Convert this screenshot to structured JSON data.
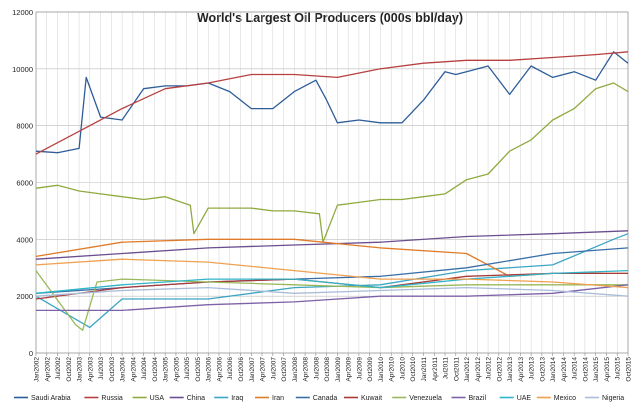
{
  "chart_data": {
    "type": "line",
    "title": "World's Largest Oil Producers (000s bbl/day)",
    "xlabel": "",
    "ylabel": "",
    "ylim": [
      0,
      12000
    ],
    "yticks": [
      0,
      2000,
      4000,
      6000,
      8000,
      10000,
      12000
    ],
    "grid": true,
    "legend_position": "bottom",
    "x_start": "Jan2002",
    "x_end": "Oct2015",
    "x_tick_labels": [
      "Jan2002",
      "Apr2002",
      "Jul2002",
      "Oct2002",
      "Jan2003",
      "Apr2003",
      "Jul2003",
      "Oct2003",
      "Jan2004",
      "Apr2004",
      "Jul2004",
      "Oct2004",
      "Jan2005",
      "Apr2005",
      "Jul2005",
      "Oct2005",
      "Jan2006",
      "Apr2006",
      "Jul2006",
      "Oct2006",
      "Jan2007",
      "Apr2007",
      "Jul2007",
      "Oct2007",
      "Jan2008",
      "Apr2008",
      "Jul2008",
      "Oct2008",
      "Jan2009",
      "Apr2009",
      "Jul2009",
      "Oct2009",
      "Jan2010",
      "Apr2010",
      "Jul2010",
      "Oct2010",
      "Jan2011",
      "Apr2011",
      "Jul2011",
      "Oct2011",
      "Jan2012",
      "Apr2012",
      "Jul2012",
      "Oct2012",
      "Jan2013",
      "Apr2013",
      "Jul2013",
      "Oct2013",
      "Jan2014",
      "Apr2014",
      "Jul2014",
      "Oct2014",
      "Jan2015",
      "Apr2015",
      "Jul2015",
      "Oct2015"
    ],
    "series": [
      {
        "name": "Saudi Arabia",
        "color": "#2e5d9a",
        "points": [
          [
            "Jan2002",
            7100
          ],
          [
            "Jul2002",
            7050
          ],
          [
            "Jan2003",
            7200
          ],
          [
            "Mar2003",
            9700
          ],
          [
            "Jul2003",
            8300
          ],
          [
            "Jan2004",
            8200
          ],
          [
            "Jul2004",
            9300
          ],
          [
            "Jan2005",
            9400
          ],
          [
            "Jul2005",
            9400
          ],
          [
            "Jan2006",
            9500
          ],
          [
            "Jul2006",
            9200
          ],
          [
            "Jan2007",
            8600
          ],
          [
            "Jul2007",
            8600
          ],
          [
            "Jan2008",
            9200
          ],
          [
            "Jul2008",
            9600
          ],
          [
            "Oct2008",
            8900
          ],
          [
            "Jan2009",
            8100
          ],
          [
            "Jul2009",
            8200
          ],
          [
            "Jan2010",
            8100
          ],
          [
            "Jul2010",
            8100
          ],
          [
            "Jan2011",
            8900
          ],
          [
            "Jul2011",
            9900
          ],
          [
            "Oct2011",
            9800
          ],
          [
            "Jan2012",
            9900
          ],
          [
            "Jul2012",
            10100
          ],
          [
            "Jan2013",
            9100
          ],
          [
            "Jul2013",
            10100
          ],
          [
            "Jan2014",
            9700
          ],
          [
            "Jul2014",
            9900
          ],
          [
            "Jan2015",
            9600
          ],
          [
            "Jun2015",
            10600
          ],
          [
            "Oct2015",
            10200
          ]
        ]
      },
      {
        "name": "Russia",
        "color": "#b84040",
        "points": [
          [
            "Jan2002",
            7000
          ],
          [
            "Jan2003",
            7800
          ],
          [
            "Jan2004",
            8600
          ],
          [
            "Jan2005",
            9300
          ],
          [
            "Jan2006",
            9500
          ],
          [
            "Jan2007",
            9800
          ],
          [
            "Jan2008",
            9800
          ],
          [
            "Jan2009",
            9700
          ],
          [
            "Jan2010",
            10000
          ],
          [
            "Jan2011",
            10200
          ],
          [
            "Jan2012",
            10300
          ],
          [
            "Jan2013",
            10300
          ],
          [
            "Jan2014",
            10400
          ],
          [
            "Jan2015",
            10500
          ],
          [
            "Oct2015",
            10600
          ]
        ]
      },
      {
        "name": "USA",
        "color": "#8faa3f",
        "points": [
          [
            "Jan2002",
            5800
          ],
          [
            "Jul2002",
            5900
          ],
          [
            "Jan2003",
            5700
          ],
          [
            "Jul2003",
            5600
          ],
          [
            "Jan2004",
            5500
          ],
          [
            "Jul2004",
            5400
          ],
          [
            "Jan2005",
            5500
          ],
          [
            "Aug2005",
            5200
          ],
          [
            "Sep2005",
            4200
          ],
          [
            "Jan2006",
            5100
          ],
          [
            "Jul2006",
            5100
          ],
          [
            "Jan2007",
            5100
          ],
          [
            "Jul2007",
            5000
          ],
          [
            "Jan2008",
            5000
          ],
          [
            "Aug2008",
            4900
          ],
          [
            "Sep2008",
            3900
          ],
          [
            "Jan2009",
            5200
          ],
          [
            "Jul2009",
            5300
          ],
          [
            "Jan2010",
            5400
          ],
          [
            "Jul2010",
            5400
          ],
          [
            "Jan2011",
            5500
          ],
          [
            "Jul2011",
            5600
          ],
          [
            "Jan2012",
            6100
          ],
          [
            "Jul2012",
            6300
          ],
          [
            "Jan2013",
            7100
          ],
          [
            "Jul2013",
            7500
          ],
          [
            "Jan2014",
            8200
          ],
          [
            "Jul2014",
            8600
          ],
          [
            "Jan2015",
            9300
          ],
          [
            "Jun2015",
            9500
          ],
          [
            "Oct2015",
            9200
          ]
        ]
      },
      {
        "name": "China",
        "color": "#6a4e8f",
        "points": [
          [
            "Jan2002",
            3300
          ],
          [
            "Jan2004",
            3500
          ],
          [
            "Jan2006",
            3700
          ],
          [
            "Jan2008",
            3800
          ],
          [
            "Jan2010",
            3900
          ],
          [
            "Jan2012",
            4100
          ],
          [
            "Jan2014",
            4200
          ],
          [
            "Oct2015",
            4300
          ]
        ]
      },
      {
        "name": "Iraq",
        "color": "#3ba6c4",
        "points": [
          [
            "Jan2002",
            2000
          ],
          [
            "Apr2003",
            900
          ],
          [
            "Jan2004",
            1900
          ],
          [
            "Jan2006",
            1900
          ],
          [
            "Jan2008",
            2300
          ],
          [
            "Jan2010",
            2400
          ],
          [
            "Jan2012",
            2900
          ],
          [
            "Jan2014",
            3100
          ],
          [
            "Jun2015",
            4000
          ],
          [
            "Oct2015",
            4200
          ]
        ]
      },
      {
        "name": "Iran",
        "color": "#e07b2a",
        "points": [
          [
            "Jan2002",
            3400
          ],
          [
            "Jan2004",
            3900
          ],
          [
            "Jan2006",
            4000
          ],
          [
            "Jan2008",
            4000
          ],
          [
            "Jan2010",
            3700
          ],
          [
            "Jan2012",
            3500
          ],
          [
            "Jan2013",
            2700
          ],
          [
            "Jan2014",
            2800
          ],
          [
            "Oct2015",
            2800
          ]
        ]
      },
      {
        "name": "Canada",
        "color": "#3a6fa8",
        "points": [
          [
            "Jan2002",
            2100
          ],
          [
            "Jan2004",
            2300
          ],
          [
            "Jan2006",
            2500
          ],
          [
            "Jan2008",
            2600
          ],
          [
            "Jan2010",
            2700
          ],
          [
            "Jan2012",
            3000
          ],
          [
            "Jan2014",
            3500
          ],
          [
            "Oct2015",
            3700
          ]
        ]
      },
      {
        "name": "Kuwait",
        "color": "#a83a3a",
        "points": [
          [
            "Jan2002",
            1900
          ],
          [
            "Jan2004",
            2300
          ],
          [
            "Jan2006",
            2500
          ],
          [
            "Jan2008",
            2600
          ],
          [
            "Jan2010",
            2300
          ],
          [
            "Jan2012",
            2700
          ],
          [
            "Jan2014",
            2800
          ],
          [
            "Oct2015",
            2800
          ]
        ]
      },
      {
        "name": "Venezuela",
        "color": "#9ab85a",
        "points": [
          [
            "Jan2002",
            2900
          ],
          [
            "Dec2002",
            1000
          ],
          [
            "Feb2003",
            800
          ],
          [
            "Jun2003",
            2500
          ],
          [
            "Jan2004",
            2600
          ],
          [
            "Jan2006",
            2500
          ],
          [
            "Jan2008",
            2400
          ],
          [
            "Jan2010",
            2300
          ],
          [
            "Jan2012",
            2400
          ],
          [
            "Jan2014",
            2400
          ],
          [
            "Oct2015",
            2400
          ]
        ]
      },
      {
        "name": "Brazil",
        "color": "#7e62a8",
        "points": [
          [
            "Jan2002",
            1500
          ],
          [
            "Jan2004",
            1500
          ],
          [
            "Jan2006",
            1700
          ],
          [
            "Jan2008",
            1800
          ],
          [
            "Jan2010",
            2000
          ],
          [
            "Jan2012",
            2000
          ],
          [
            "Jan2014",
            2100
          ],
          [
            "Oct2015",
            2400
          ]
        ]
      },
      {
        "name": "UAE",
        "color": "#2fb4c8",
        "points": [
          [
            "Jan2002",
            2100
          ],
          [
            "Jan2004",
            2400
          ],
          [
            "Jan2006",
            2600
          ],
          [
            "Jan2008",
            2600
          ],
          [
            "Jan2010",
            2300
          ],
          [
            "Jan2012",
            2600
          ],
          [
            "Jan2014",
            2800
          ],
          [
            "Oct2015",
            2900
          ]
        ]
      },
      {
        "name": "Mexico",
        "color": "#f0a050",
        "points": [
          [
            "Jan2002",
            3100
          ],
          [
            "Jan2004",
            3300
          ],
          [
            "Jan2006",
            3200
          ],
          [
            "Jan2008",
            2900
          ],
          [
            "Jan2010",
            2600
          ],
          [
            "Jan2012",
            2600
          ],
          [
            "Jan2014",
            2500
          ],
          [
            "Oct2015",
            2300
          ]
        ]
      },
      {
        "name": "Nigeria",
        "color": "#a9bcd8",
        "points": [
          [
            "Jan2002",
            2000
          ],
          [
            "Jan2004",
            2200
          ],
          [
            "Jan2006",
            2300
          ],
          [
            "Jan2008",
            2100
          ],
          [
            "Jan2010",
            2200
          ],
          [
            "Jan2012",
            2300
          ],
          [
            "Jan2014",
            2200
          ],
          [
            "Oct2015",
            2000
          ]
        ]
      }
    ]
  }
}
